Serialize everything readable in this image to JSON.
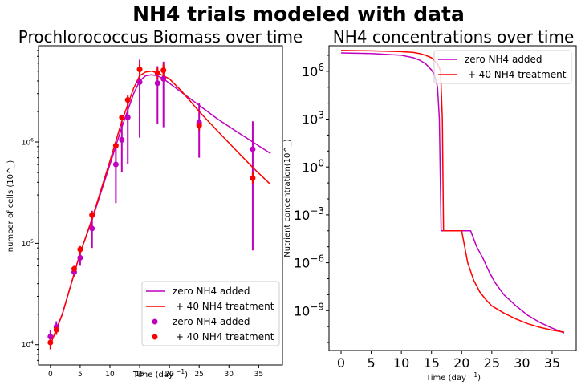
{
  "suptitle": "NH4 trials modeled with data",
  "colors": {
    "control": "#bf00bf",
    "treatment": "#ff0000"
  },
  "chart_data": [
    {
      "type": "line",
      "title": "Prochlorococcus Biomass over time",
      "xlabel": "Time (day $^-1$)",
      "ylabel": "number of cells (10^_)",
      "yscale": "log",
      "xlim": [
        -2,
        39
      ],
      "ylim_log10": [
        3.8,
        6.95
      ],
      "xticks": [
        "0",
        "5",
        "10",
        "15",
        "20",
        "25",
        "30",
        "35"
      ],
      "yticks": [
        "$10^4$",
        "$10^5$",
        "$10^6$"
      ],
      "legend": [
        "zero NH4 added",
        " + 40 NH4 treatment",
        "zero NH4 added",
        " + 40 NH4 treatment"
      ],
      "legend_position": "lower-right",
      "series": [
        {
          "name": "zero NH4 added",
          "kind": "model-line",
          "color": "control",
          "x": [
            0,
            2,
            5,
            7,
            10,
            12,
            14,
            15,
            16,
            17,
            18,
            19,
            20,
            22,
            25,
            28,
            31,
            34,
            37
          ],
          "y": [
            10000,
            20000,
            80000,
            170000,
            600000,
            1400000,
            3000000,
            4000000,
            4500000,
            4600000,
            4500000,
            4200000,
            3800000,
            3100000,
            2300000,
            1700000,
            1300000,
            1000000,
            770000
          ]
        },
        {
          "name": " + 40 NH4 treatment",
          "kind": "model-line",
          "color": "treatment",
          "x": [
            0,
            2,
            5,
            7,
            10,
            12,
            14,
            15,
            16,
            17,
            18,
            19,
            20,
            22,
            25,
            28,
            31,
            34,
            37
          ],
          "y": [
            10000,
            20000,
            80000,
            175000,
            650000,
            1600000,
            3400000,
            4500000,
            4900000,
            5000000,
            4800000,
            4500000,
            4200000,
            3200000,
            2000000,
            1300000,
            850000,
            560000,
            380000
          ]
        },
        {
          "name": "zero NH4 added",
          "kind": "data-points",
          "color": "control",
          "x": [
            0,
            1,
            4,
            5,
            7,
            11,
            12,
            13,
            15,
            18,
            19,
            25,
            34
          ],
          "y": [
            12000,
            15000,
            52000,
            72000,
            140000,
            600000,
            1050000,
            1750000,
            3900000,
            3800000,
            4200000,
            1550000,
            850000
          ],
          "err_low": [
            10000,
            13000,
            47000,
            60000,
            90000,
            250000,
            500000,
            600000,
            1100000,
            1500000,
            1400000,
            700000,
            85000
          ],
          "err_high": [
            14000,
            17000,
            57000,
            85000,
            210000,
            900000,
            1600000,
            2800000,
            6500000,
            5600000,
            6200000,
            2400000,
            1600000
          ]
        },
        {
          "name": " + 40 NH4 treatment",
          "kind": "data-points",
          "color": "treatment",
          "x": [
            0,
            1,
            4,
            5,
            7,
            11,
            12,
            13,
            15,
            18,
            19,
            25,
            34
          ],
          "y": [
            10500,
            14000,
            56000,
            87000,
            190000,
            920000,
            1750000,
            2600000,
            5200000,
            4800000,
            5100000,
            1450000,
            440000
          ],
          "err_low": [
            9000,
            12500,
            52000,
            80000,
            175000,
            850000,
            1650000,
            2300000,
            4500000,
            4200000,
            4400000,
            1300000,
            390000
          ],
          "err_high": [
            12000,
            15500,
            60000,
            94000,
            205000,
            1000000,
            1850000,
            2900000,
            5900000,
            5400000,
            5800000,
            1600000,
            500000
          ]
        }
      ]
    },
    {
      "type": "line",
      "title": "NH4 concentrations over time",
      "xlabel": "Time (day $^-1$)",
      "ylabel": "Nutrient concentration(10^_)",
      "yscale": "log",
      "xlim": [
        -2,
        39
      ],
      "ylim_log10": [
        -11.5,
        7.6
      ],
      "xticks": [
        "0",
        "5",
        "10",
        "15",
        "20",
        "25",
        "30",
        "35"
      ],
      "yticks": [
        "$10^{-9}$",
        "$10^{-6}$",
        "$10^{-3}$",
        "$10^{0}$",
        "$10^{3}$",
        "$10^{6}$"
      ],
      "legend": [
        "zero NH4 added",
        " + 40 NH4 treatment"
      ],
      "legend_position": "top-right",
      "series": [
        {
          "name": "zero NH4 added",
          "color": "control",
          "x": [
            0,
            5,
            10,
            12,
            13,
            14,
            15,
            15.5,
            16,
            16.3,
            16.6,
            17,
            20,
            21.5,
            22.5,
            23.5,
            24.5,
            25.5,
            27,
            29,
            31,
            33,
            35,
            37
          ],
          "y": [
            14000000,
            13000000,
            10000000,
            7000000,
            5000000,
            3000000,
            1200000,
            600000,
            100000,
            1000,
            0.0001,
            0.0001,
            0.0001,
            0.0001,
            1e-05,
            2e-06,
            3e-07,
            6e-08,
            1e-08,
            2e-09,
            5e-10,
            1.8e-10,
            8e-11,
            4e-11
          ]
        },
        {
          "name": " + 40 NH4 treatment",
          "color": "treatment",
          "x": [
            0,
            5,
            10,
            12,
            13,
            14,
            15,
            16,
            16.5,
            16.8,
            17,
            17.3,
            17.6,
            18,
            20,
            21,
            22,
            23,
            24,
            25,
            27,
            29,
            31,
            33,
            35,
            37
          ],
          "y": [
            20000000,
            19000000,
            17000000,
            15000000,
            13000000,
            10000000,
            7000000,
            3000000,
            1000000,
            1000,
            0.0001,
            0.0001,
            0.0001,
            0.0001,
            0.0001,
            1e-06,
            8e-08,
            1.5e-08,
            5e-09,
            2e-09,
            7e-10,
            3e-10,
            1.5e-10,
            9e-11,
            6e-11,
            4.5e-11
          ]
        }
      ]
    }
  ]
}
